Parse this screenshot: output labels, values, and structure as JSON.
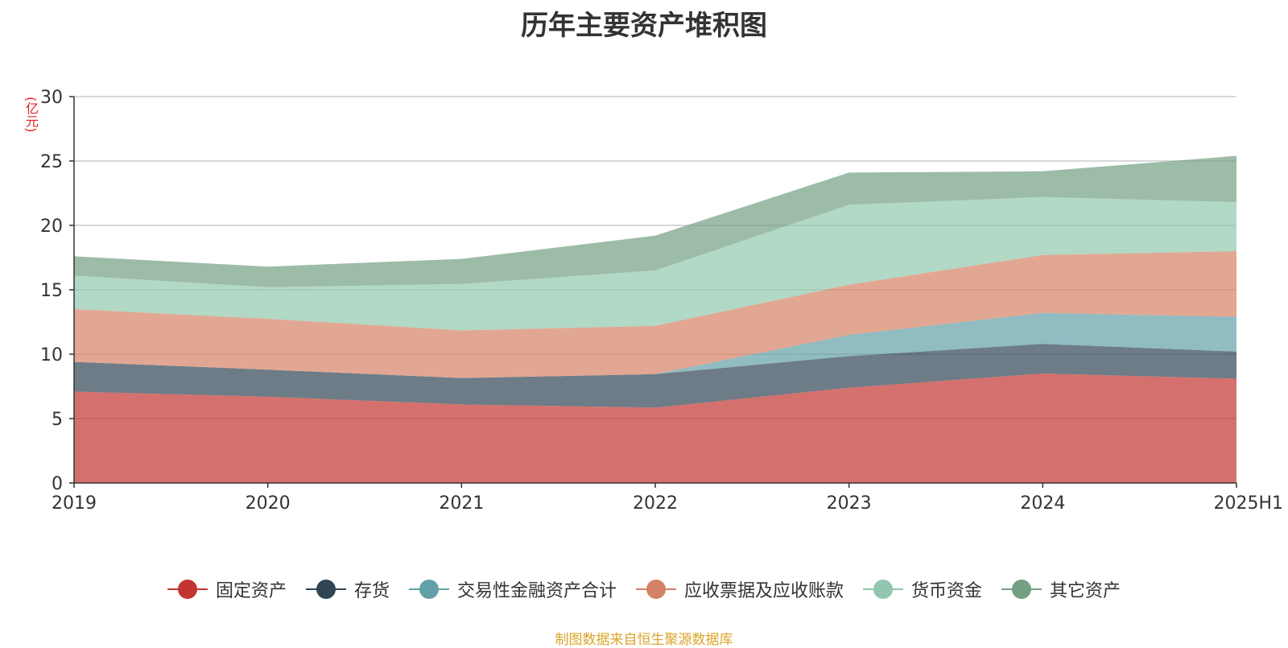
{
  "title": "历年主要资产堆积图",
  "unit_label": "(亿元)",
  "footer": "制图数据来自恒生聚源数据库",
  "chart_data": {
    "type": "area",
    "stacked": true,
    "title": "历年主要资产堆积图",
    "ylabel": "(亿元)",
    "xlabel": "",
    "ylim": [
      0,
      30
    ],
    "yticks": [
      0,
      5,
      10,
      15,
      20,
      25,
      30
    ],
    "grid": true,
    "legend_position": "bottom",
    "categories": [
      "2019",
      "2020",
      "2021",
      "2022",
      "2023",
      "2024",
      "2025H1"
    ],
    "series": [
      {
        "name": "固定资产",
        "color": "#c23531",
        "values": [
          7.1,
          6.7,
          6.1,
          5.85,
          7.4,
          8.5,
          8.1
        ]
      },
      {
        "name": "存货",
        "color": "#2f4554",
        "values": [
          2.3,
          2.1,
          2.05,
          2.6,
          2.45,
          2.3,
          2.1
        ]
      },
      {
        "name": "交易性金融资产合计",
        "color": "#61a0a8",
        "values": [
          0,
          0,
          0,
          0,
          1.65,
          2.4,
          2.7
        ]
      },
      {
        "name": "应收票据及应收账款",
        "color": "#d48265",
        "values": [
          4.1,
          3.95,
          3.7,
          3.75,
          3.9,
          4.5,
          5.1
        ]
      },
      {
        "name": "货币资金",
        "color": "#91c7ae",
        "values": [
          2.6,
          2.45,
          3.6,
          4.3,
          6.2,
          4.5,
          3.8
        ]
      },
      {
        "name": "其它资产",
        "color": "#749f83",
        "values": [
          1.5,
          1.6,
          1.95,
          2.7,
          2.5,
          2.0,
          3.6
        ]
      }
    ]
  }
}
